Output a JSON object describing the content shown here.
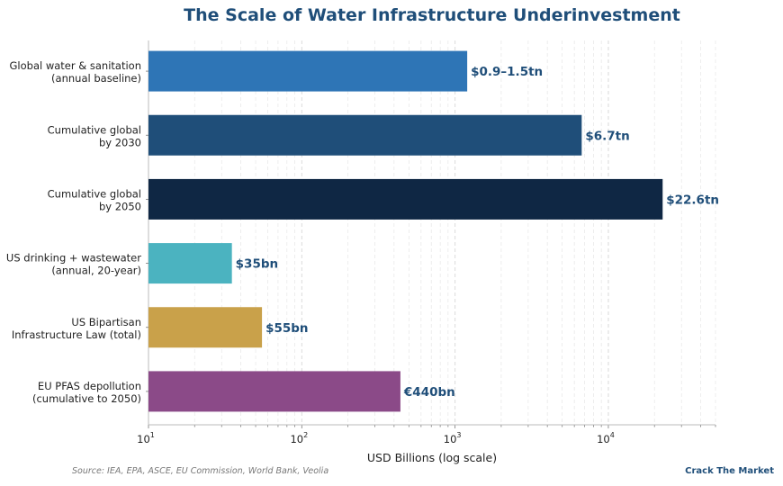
{
  "chart_data": {
    "type": "bar",
    "orientation": "horizontal",
    "title": "The Scale of Water Infrastructure Underinvestment",
    "xlabel": "USD Billions (log scale)",
    "ylabel": "",
    "xscale": "log",
    "xlim": [
      10,
      50000
    ],
    "categories": [
      [
        "Global water & sanitation",
        "(annual baseline)"
      ],
      [
        "Cumulative global",
        "by 2030"
      ],
      [
        "Cumulative global",
        "by 2050"
      ],
      [
        "US drinking + wastewater",
        "(annual, 20-year)"
      ],
      [
        "US Bipartisan",
        "Infrastructure Law (total)"
      ],
      [
        "EU PFAS depollution",
        "(cumulative to 2050)"
      ]
    ],
    "values": [
      1200,
      6700,
      22600,
      35,
      55,
      440
    ],
    "data_labels": [
      "$0.9–1.5tn",
      "$6.7tn",
      "$22.6tn",
      "$35bn",
      "$55bn",
      "€440bn"
    ],
    "colors": [
      "#2e75b6",
      "#1f4e79",
      "#0f2744",
      "#4bb3c0",
      "#c9a14a",
      "#8b4a88"
    ],
    "x_ticks": [
      {
        "base": "10",
        "exp": "1",
        "value": 10
      },
      {
        "base": "10",
        "exp": "2",
        "value": 100
      },
      {
        "base": "10",
        "exp": "3",
        "value": 1000
      },
      {
        "base": "10",
        "exp": "4",
        "value": 10000
      }
    ],
    "grid": true
  },
  "footer": {
    "source": "Source: IEA, EPA, ASCE, EU Commission, World Bank, Veolia",
    "brand": "Crack The Market"
  }
}
